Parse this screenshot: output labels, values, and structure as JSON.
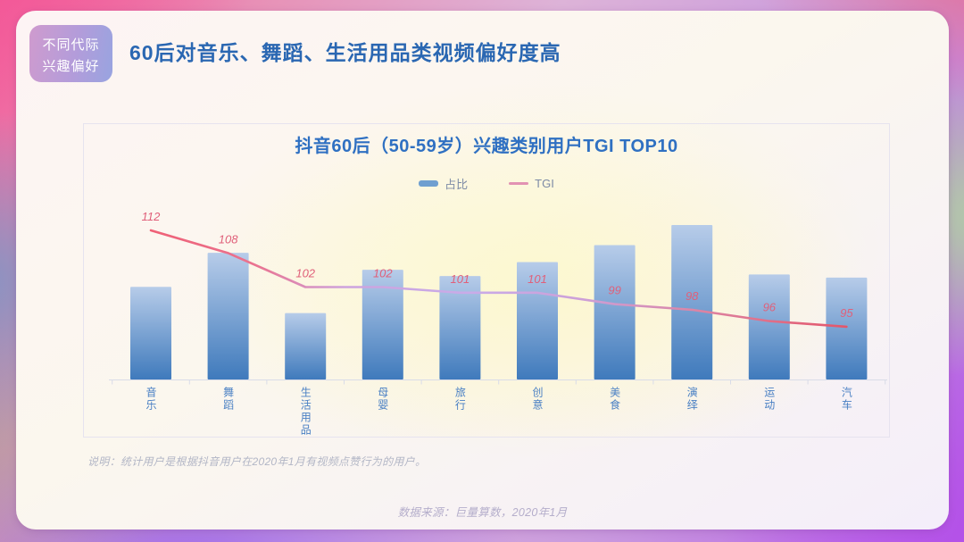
{
  "slide": {
    "badge": {
      "line1": "不同代际",
      "line2": "兴趣偏好"
    },
    "title": "60后对音乐、舞蹈、生活用品类视频偏好度高",
    "footnote": "说明：统计用户是根据抖音用户在2020年1月有视频点赞行为的用户。",
    "source": "数据来源：巨量算数，2020年1月"
  },
  "chart_data": {
    "type": "bar",
    "combo": "bar+line",
    "title": "抖音60后（50-59岁）兴趣类别用户TGI TOP10",
    "categories": [
      "音乐",
      "舞蹈",
      "生活用品",
      "母婴",
      "旅行",
      "创意",
      "美食",
      "演绎",
      "运动",
      "汽车"
    ],
    "series": [
      {
        "name": "占比",
        "type": "bar",
        "unit": "relative_height_max100",
        "labels_shown": false,
        "values": [
          60,
          82,
          43,
          71,
          67,
          76,
          87,
          100,
          68,
          66
        ]
      },
      {
        "name": "TGI",
        "type": "line",
        "labels_shown": true,
        "values": [
          112,
          108,
          102,
          102,
          101,
          101,
          99,
          98,
          96,
          95
        ]
      }
    ],
    "legend": [
      "占比",
      "TGI"
    ],
    "legend_position": "top-center",
    "grid": false,
    "y_axis_shown": false,
    "colors": {
      "bar_top": "#b7cce9",
      "bar_bottom": "#3f7abc",
      "line_start": "#ef6076",
      "line_mid": "#c9abe8",
      "line_end": "#e4566a",
      "tgi_label": "#e0607a",
      "category_label": "#4a80c4",
      "axis": "#d9dce8",
      "chart_title": "#2f70c2",
      "header_title": "#2a67b2"
    }
  }
}
